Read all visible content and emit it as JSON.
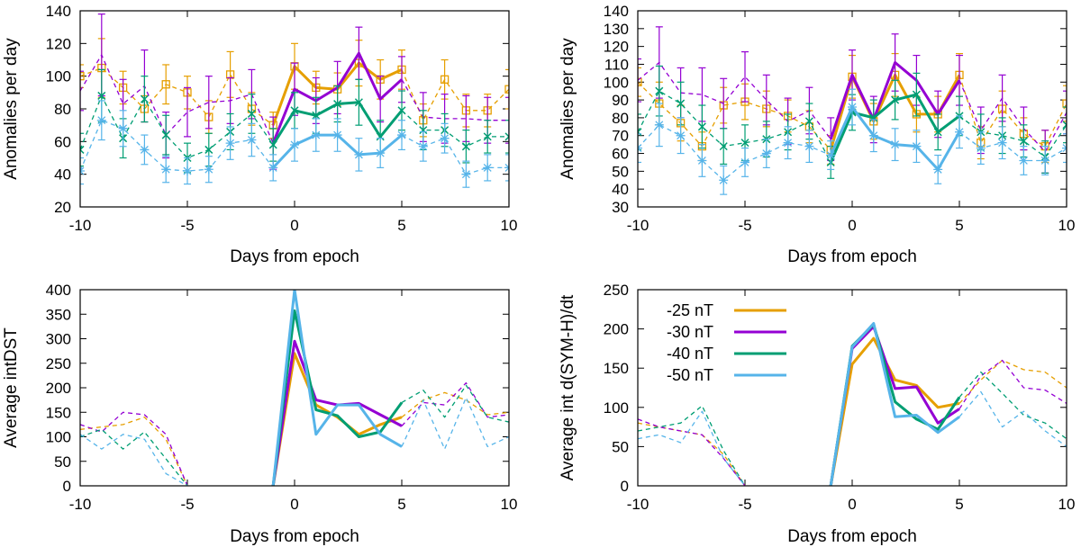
{
  "colors": {
    "-25 nT": "#e69f00",
    "-30 nT": "#9400d3",
    "-40 nT": "#009e73",
    "-50 nT": "#56b4e9"
  },
  "chart_data": [
    {
      "type": "line",
      "id": "tl",
      "xlabel": "Days from epoch",
      "ylabel": "Anomalies per day",
      "xlim": [
        -10,
        10
      ],
      "ylim": [
        20,
        140
      ],
      "xticks": [
        -10,
        -5,
        0,
        5,
        10
      ],
      "yticks": [
        20,
        40,
        60,
        80,
        100,
        120,
        140
      ],
      "x": [
        -10,
        -9,
        -8,
        -7,
        -6,
        -5,
        -4,
        -3,
        -2,
        -1,
        0,
        1,
        2,
        3,
        4,
        5,
        6,
        7,
        8,
        9,
        10
      ],
      "series": [
        {
          "name": "-25 nT",
          "marker": "square",
          "values": [
            100,
            105,
            93,
            80,
            95,
            90,
            75,
            101,
            80,
            70,
            106,
            93,
            92,
            108,
            98,
            104,
            73,
            98,
            79,
            79,
            92
          ],
          "err": [
            7,
            18,
            10,
            8,
            12,
            10,
            10,
            14,
            10,
            8,
            14,
            10,
            10,
            14,
            12,
            12,
            10,
            12,
            10,
            10,
            12
          ]
        },
        {
          "name": "-30 nT",
          "marker": "none",
          "values": [
            91,
            113,
            83,
            94,
            64,
            78,
            84,
            85,
            89,
            59,
            92,
            85,
            93,
            114,
            86,
            98,
            75,
            74,
            74,
            73,
            73
          ],
          "err": [
            12,
            25,
            15,
            22,
            14,
            15,
            16,
            14,
            15,
            16,
            16,
            14,
            16,
            16,
            14,
            14,
            15,
            15,
            14,
            14,
            14
          ]
        },
        {
          "name": "-40 nT",
          "marker": "x",
          "values": [
            55,
            88,
            62,
            86,
            64,
            50,
            55,
            66,
            77,
            58,
            79,
            76,
            83,
            84,
            63,
            79,
            67,
            67,
            57,
            63,
            63
          ],
          "err": [
            10,
            16,
            12,
            14,
            12,
            9,
            10,
            11,
            12,
            10,
            11,
            11,
            11,
            14,
            10,
            12,
            12,
            10,
            10,
            10,
            10
          ]
        },
        {
          "name": "-50 nT",
          "marker": "star",
          "values": [
            42,
            73,
            68,
            55,
            43,
            42,
            43,
            59,
            61,
            44,
            58,
            64,
            64,
            52,
            53,
            64,
            57,
            62,
            40,
            44,
            44
          ],
          "err": [
            8,
            12,
            11,
            9,
            8,
            8,
            8,
            10,
            10,
            8,
            10,
            10,
            10,
            10,
            9,
            9,
            9,
            9,
            8,
            8,
            8
          ]
        }
      ]
    },
    {
      "type": "line",
      "id": "tr",
      "xlabel": "Days from epoch",
      "ylabel": "Anomalies per day",
      "xlim": [
        -10,
        10
      ],
      "ylim": [
        30,
        140
      ],
      "xticks": [
        -10,
        -5,
        0,
        5,
        10
      ],
      "yticks": [
        30,
        40,
        50,
        60,
        70,
        80,
        90,
        100,
        110,
        120,
        130,
        140
      ],
      "x": [
        -10,
        -9,
        -8,
        -7,
        -6,
        -5,
        -4,
        -3,
        -2,
        -1,
        0,
        1,
        2,
        3,
        4,
        5,
        6,
        7,
        8,
        9,
        10
      ],
      "series": [
        {
          "name": "-25 nT",
          "marker": "square",
          "values": [
            100,
            88,
            77,
            64,
            87,
            89,
            85,
            81,
            75,
            62,
            103,
            78,
            104,
            82,
            82,
            104,
            66,
            85,
            71,
            64,
            88
          ],
          "err": [
            8,
            12,
            10,
            8,
            10,
            10,
            10,
            9,
            9,
            8,
            12,
            10,
            12,
            10,
            10,
            12,
            9,
            10,
            9,
            9,
            10
          ]
        },
        {
          "name": "-30 nT",
          "marker": "none",
          "values": [
            101,
            111,
            94,
            93,
            88,
            103,
            90,
            78,
            84,
            68,
            104,
            79,
            111,
            101,
            82,
            101,
            73,
            91,
            74,
            61,
            83
          ],
          "err": [
            12,
            20,
            14,
            15,
            14,
            14,
            14,
            13,
            13,
            12,
            14,
            13,
            16,
            14,
            13,
            14,
            13,
            13,
            12,
            12,
            12
          ]
        },
        {
          "name": "-40 nT",
          "marker": "x",
          "values": [
            72,
            95,
            88,
            75,
            64,
            66,
            68,
            72,
            78,
            55,
            83,
            80,
            90,
            93,
            72,
            81,
            72,
            70,
            67,
            58,
            76
          ],
          "err": [
            10,
            14,
            12,
            12,
            10,
            10,
            10,
            10,
            10,
            9,
            10,
            10,
            11,
            12,
            10,
            11,
            10,
            10,
            9,
            9,
            10
          ]
        },
        {
          "name": "-50 nT",
          "marker": "star",
          "values": [
            63,
            76,
            70,
            56,
            45,
            55,
            60,
            66,
            64,
            59,
            86,
            70,
            65,
            64,
            51,
            72,
            63,
            66,
            56,
            56,
            63
          ],
          "err": [
            8,
            12,
            10,
            9,
            8,
            8,
            8,
            9,
            9,
            8,
            10,
            9,
            9,
            9,
            8,
            9,
            9,
            9,
            8,
            8,
            8
          ]
        }
      ]
    },
    {
      "type": "line",
      "id": "bl",
      "xlabel": "Days from epoch",
      "ylabel": "Average intDST",
      "xlim": [
        -10,
        10
      ],
      "ylim": [
        0,
        400
      ],
      "xticks": [
        -10,
        -5,
        0,
        5,
        10
      ],
      "yticks": [
        0,
        50,
        100,
        150,
        200,
        250,
        300,
        350,
        400
      ],
      "series": [
        {
          "name": "-25 nT",
          "dashed_x": [
            -10,
            -9,
            -8,
            -7,
            -6,
            -5
          ],
          "dashed": [
            115,
            120,
            125,
            140,
            95,
            0
          ],
          "solid_x": [
            -1,
            0,
            1,
            2,
            3,
            4,
            5
          ],
          "solid": [
            0,
            270,
            165,
            140,
            105,
            125,
            140
          ],
          "tail_x": [
            5,
            6,
            7,
            8,
            9,
            10
          ],
          "tail": [
            140,
            175,
            190,
            175,
            145,
            150
          ]
        },
        {
          "name": "-30 nT",
          "dashed_x": [
            -10,
            -9,
            -8,
            -7,
            -6,
            -5
          ],
          "dashed": [
            125,
            110,
            150,
            145,
            105,
            0
          ],
          "solid_x": [
            -1,
            0,
            1,
            2,
            3,
            4,
            5
          ],
          "solid": [
            0,
            295,
            175,
            165,
            168,
            145,
            122
          ],
          "tail_x": [
            5,
            6,
            7,
            8,
            9,
            10
          ],
          "tail": [
            122,
            170,
            165,
            210,
            140,
            145
          ]
        },
        {
          "name": "-40 nT",
          "dashed_x": [
            -10,
            -9,
            -8,
            -7,
            -6,
            -5
          ],
          "dashed": [
            100,
            115,
            75,
            110,
            55,
            0
          ],
          "solid_x": [
            -1,
            0,
            1,
            2,
            3,
            4,
            5
          ],
          "solid": [
            0,
            357,
            155,
            143,
            100,
            110,
            170
          ],
          "tail_x": [
            5,
            6,
            7,
            8,
            9,
            10
          ],
          "tail": [
            170,
            195,
            140,
            205,
            140,
            130
          ]
        },
        {
          "name": "-50 nT",
          "dashed_x": [
            -10,
            -9,
            -8,
            -7,
            -6,
            -5
          ],
          "dashed": [
            105,
            75,
            105,
            95,
            25,
            0
          ],
          "solid_x": [
            -1,
            0,
            1,
            2,
            3,
            4,
            5
          ],
          "solid": [
            0,
            400,
            105,
            165,
            165,
            105,
            80
          ],
          "tail_x": [
            5,
            6,
            7,
            8,
            9,
            10
          ],
          "tail": [
            80,
            175,
            75,
            180,
            80,
            100
          ]
        }
      ]
    },
    {
      "type": "line",
      "id": "br",
      "xlabel": "Days from epoch",
      "ylabel": "Average int d(SYM-H)/dt",
      "xlim": [
        -10,
        10
      ],
      "ylim": [
        0,
        250
      ],
      "xticks": [
        -10,
        -5,
        0,
        5,
        10
      ],
      "yticks": [
        0,
        50,
        100,
        150,
        200,
        250
      ],
      "legend": [
        "-25 nT",
        "-30 nT",
        "-40 nT",
        "-50 nT"
      ],
      "legend_position": "top-left",
      "series": [
        {
          "name": "-25 nT",
          "dashed_x": [
            -10,
            -9,
            -8,
            -7,
            -6,
            -5
          ],
          "dashed": [
            80,
            75,
            70,
            65,
            40,
            0
          ],
          "solid_x": [
            -1,
            0,
            1,
            2,
            3,
            4,
            5
          ],
          "solid": [
            0,
            155,
            188,
            135,
            128,
            100,
            105
          ],
          "tail_x": [
            5,
            6,
            7,
            8,
            9,
            10
          ],
          "tail": [
            105,
            135,
            160,
            148,
            145,
            125
          ]
        },
        {
          "name": "-30 nT",
          "dashed_x": [
            -10,
            -9,
            -8,
            -7,
            -6,
            -5
          ],
          "dashed": [
            85,
            75,
            70,
            65,
            35,
            0
          ],
          "solid_x": [
            -1,
            0,
            1,
            2,
            3,
            4,
            5
          ],
          "solid": [
            0,
            175,
            203,
            124,
            126,
            80,
            98
          ],
          "tail_x": [
            5,
            6,
            7,
            8,
            9,
            10
          ],
          "tail": [
            98,
            140,
            160,
            125,
            122,
            105
          ]
        },
        {
          "name": "-40 nT",
          "dashed_x": [
            -10,
            -9,
            -8,
            -7,
            -6,
            -5
          ],
          "dashed": [
            70,
            75,
            80,
            102,
            45,
            0
          ],
          "solid_x": [
            -1,
            0,
            1,
            2,
            3,
            4,
            5
          ],
          "solid": [
            0,
            178,
            206,
            107,
            85,
            72,
            113
          ],
          "tail_x": [
            5,
            6,
            7,
            8,
            9,
            10
          ],
          "tail": [
            113,
            145,
            118,
            90,
            80,
            60
          ]
        },
        {
          "name": "-50 nT",
          "dashed_x": [
            -10,
            -9,
            -8,
            -7,
            -6,
            -5
          ],
          "dashed": [
            60,
            65,
            55,
            95,
            35,
            0
          ],
          "solid_x": [
            -1,
            0,
            1,
            2,
            3,
            4,
            5
          ],
          "solid": [
            0,
            177,
            207,
            88,
            90,
            68,
            88
          ],
          "tail_x": [
            5,
            6,
            7,
            8,
            9,
            10
          ],
          "tail": [
            88,
            120,
            75,
            95,
            70,
            50
          ]
        }
      ]
    }
  ]
}
